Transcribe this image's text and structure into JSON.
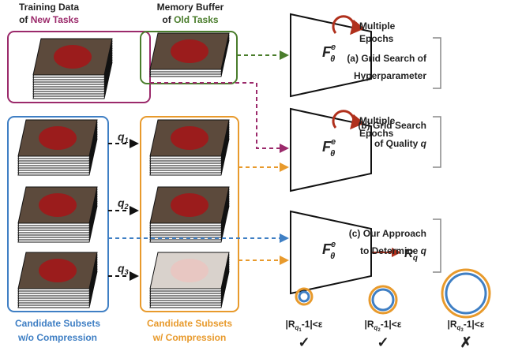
{
  "inputs": {
    "new": {
      "line1": "Training Data",
      "prefix": "of ",
      "highlight": "New Tasks"
    },
    "old": {
      "line1": "Memory Buffer",
      "prefix": "of ",
      "highlight": "Old Tasks"
    }
  },
  "model": {
    "symbol": "F",
    "sub": "θ",
    "sup": "e"
  },
  "epochs": {
    "line1": "Multiple",
    "line2": "Epochs"
  },
  "methods": [
    {
      "line1": "(a) Grid Search of",
      "line2": "Hyperparameter"
    },
    {
      "line1": "(b) Grid Search",
      "line2": "of Quality ",
      "var": "q"
    },
    {
      "line1": "(c) Our Approach",
      "line2": "to Determine ",
      "var": "q"
    }
  ],
  "qualities": [
    {
      "symbol": "q",
      "index": "1"
    },
    {
      "symbol": "q",
      "index": "2"
    },
    {
      "symbol": "q",
      "index": "3"
    }
  ],
  "output": {
    "symbol": "R",
    "sub": "q"
  },
  "subsets": {
    "uncompressed": {
      "line1": "Candidate Subsets",
      "line2": "w/o Compression"
    },
    "compressed": {
      "line1": "Candidate Subsets",
      "line2": "w/ Compression"
    }
  },
  "conditions": [
    {
      "prefix": "|R",
      "sub_symbol": "q",
      "sub_index": "1",
      "suffix": "-1|<ε",
      "result": "✓"
    },
    {
      "prefix": "|R",
      "sub_symbol": "q",
      "sub_index": "2",
      "suffix": "-1|<ε",
      "result": "✓"
    },
    {
      "prefix": "|R",
      "sub_symbol": "q",
      "sub_index": "3",
      "suffix": "-1|<ε",
      "result": "✗"
    }
  ]
}
